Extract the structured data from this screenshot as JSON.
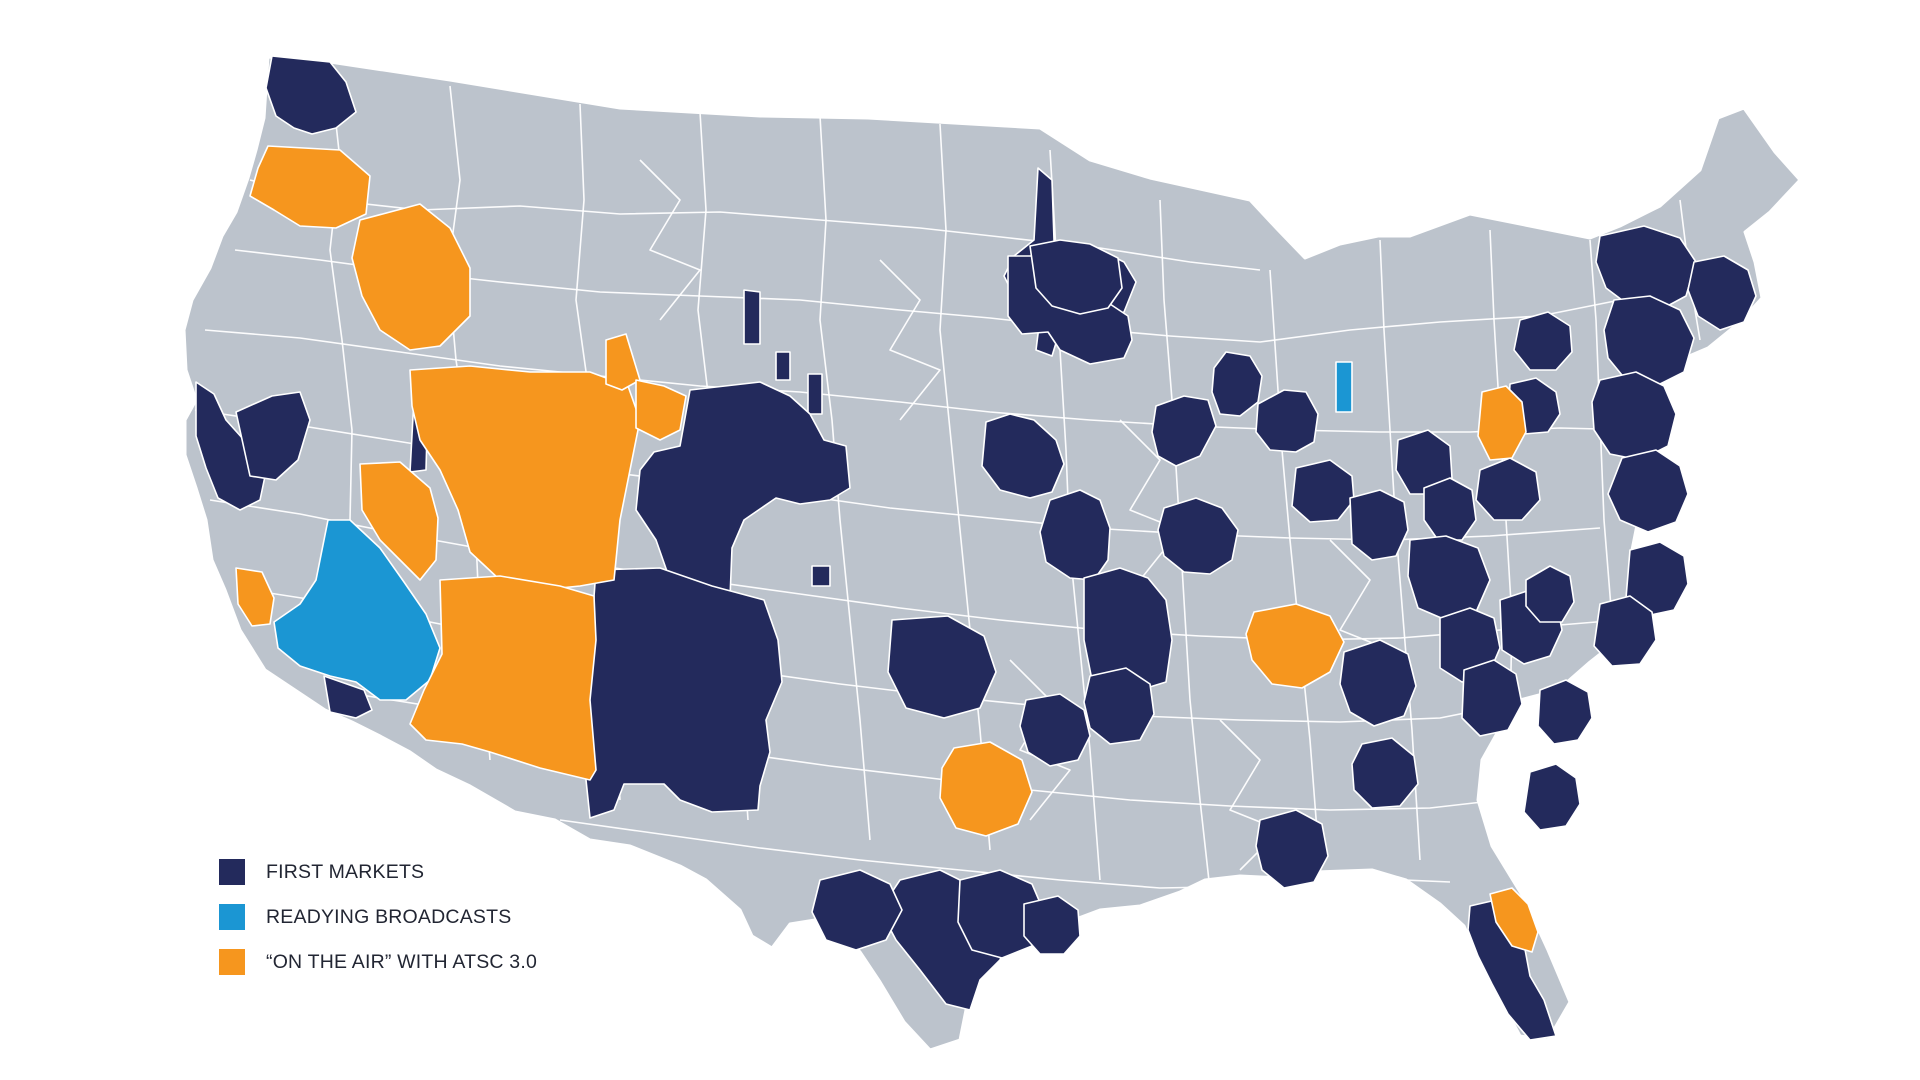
{
  "colors": {
    "base_land": "#bcc3cc",
    "borders": "#ffffff",
    "background": "#ffffff",
    "first_markets": "#232a5c",
    "readying_broadcasts": "#1b96d3",
    "on_the_air": "#f6961e"
  },
  "legend": {
    "items": [
      {
        "id": "first_markets",
        "label": "FIRST MARKETS",
        "color": "#232a5c"
      },
      {
        "id": "readying_broadcasts",
        "label": "READYING BROADCASTS",
        "color": "#1b96d3"
      },
      {
        "id": "on_the_air",
        "label": "“ON THE AIR” WITH ATSC 3.0",
        "color": "#f6961e"
      }
    ]
  }
}
